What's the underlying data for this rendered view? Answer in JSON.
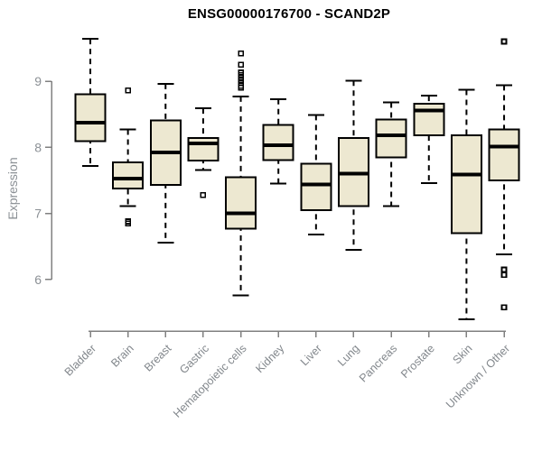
{
  "chart_data": {
    "type": "boxplot",
    "title": "ENSG00000176700 - SCAND2P",
    "ylabel": "Expression",
    "xlabel": "",
    "yticks": [
      6,
      7,
      8,
      9
    ],
    "ylim": [
      5.2,
      9.8
    ],
    "grid": false,
    "legend": "none",
    "categories": [
      "Bladder",
      "Brain",
      "Breast",
      "Gastric",
      "Hematopoietic cells",
      "Kidney",
      "Liver",
      "Lung",
      "Pancreas",
      "Prostate",
      "Skin",
      "Unknown / Other"
    ],
    "series": [
      {
        "name": "Bladder",
        "whislo": 7.72,
        "q1": 8.09,
        "med": 8.37,
        "q3": 8.8,
        "whishi": 9.64,
        "outliers": []
      },
      {
        "name": "Brain",
        "whislo": 7.11,
        "q1": 7.38,
        "med": 7.53,
        "q3": 7.77,
        "whishi": 8.27,
        "outliers": [
          8.86,
          6.88,
          6.85
        ]
      },
      {
        "name": "Breast",
        "whislo": 6.56,
        "q1": 7.43,
        "med": 7.92,
        "q3": 8.41,
        "whishi": 8.96,
        "outliers": []
      },
      {
        "name": "Gastric",
        "whislo": 7.66,
        "q1": 7.8,
        "med": 8.06,
        "q3": 8.14,
        "whishi": 8.59,
        "outliers": [
          7.28
        ]
      },
      {
        "name": "Hematopoietic cells",
        "whislo": 5.76,
        "q1": 6.77,
        "med": 7.0,
        "q3": 7.55,
        "whishi": 8.77,
        "outliers": [
          9.42,
          9.25,
          9.13,
          9.09,
          9.05,
          9.01,
          8.97,
          8.93,
          8.9
        ]
      },
      {
        "name": "Kidney",
        "whislo": 7.45,
        "q1": 7.81,
        "med": 8.03,
        "q3": 8.34,
        "whishi": 8.73,
        "outliers": []
      },
      {
        "name": "Liver",
        "whislo": 6.68,
        "q1": 7.05,
        "med": 7.44,
        "q3": 7.75,
        "whishi": 8.49,
        "outliers": []
      },
      {
        "name": "Lung",
        "whislo": 6.45,
        "q1": 7.11,
        "med": 7.6,
        "q3": 8.14,
        "whishi": 9.01,
        "outliers": []
      },
      {
        "name": "Pancreas",
        "whislo": 7.11,
        "q1": 7.85,
        "med": 8.18,
        "q3": 8.42,
        "whishi": 8.68,
        "outliers": []
      },
      {
        "name": "Prostate",
        "whislo": 7.46,
        "q1": 8.18,
        "med": 8.56,
        "q3": 8.66,
        "whishi": 8.78,
        "outliers": []
      },
      {
        "name": "Skin",
        "whislo": 5.4,
        "q1": 6.7,
        "med": 7.59,
        "q3": 8.18,
        "whishi": 8.87,
        "outliers": []
      },
      {
        "name": "Unknown / Other",
        "whislo": 6.38,
        "q1": 7.5,
        "med": 8.01,
        "q3": 8.27,
        "whishi": 8.94,
        "outliers": [
          9.6,
          6.15,
          6.07,
          5.58
        ]
      }
    ],
    "colors": {
      "box_fill": "#EDE8D1",
      "box_border": "#000000",
      "median": "#000000",
      "whisker": "#000000",
      "outlier": "#000000",
      "axis_line": "#808080",
      "tick_label": "#8b9095",
      "category_label": "#82878c",
      "title": "#000000",
      "background": "#ffffff"
    }
  }
}
